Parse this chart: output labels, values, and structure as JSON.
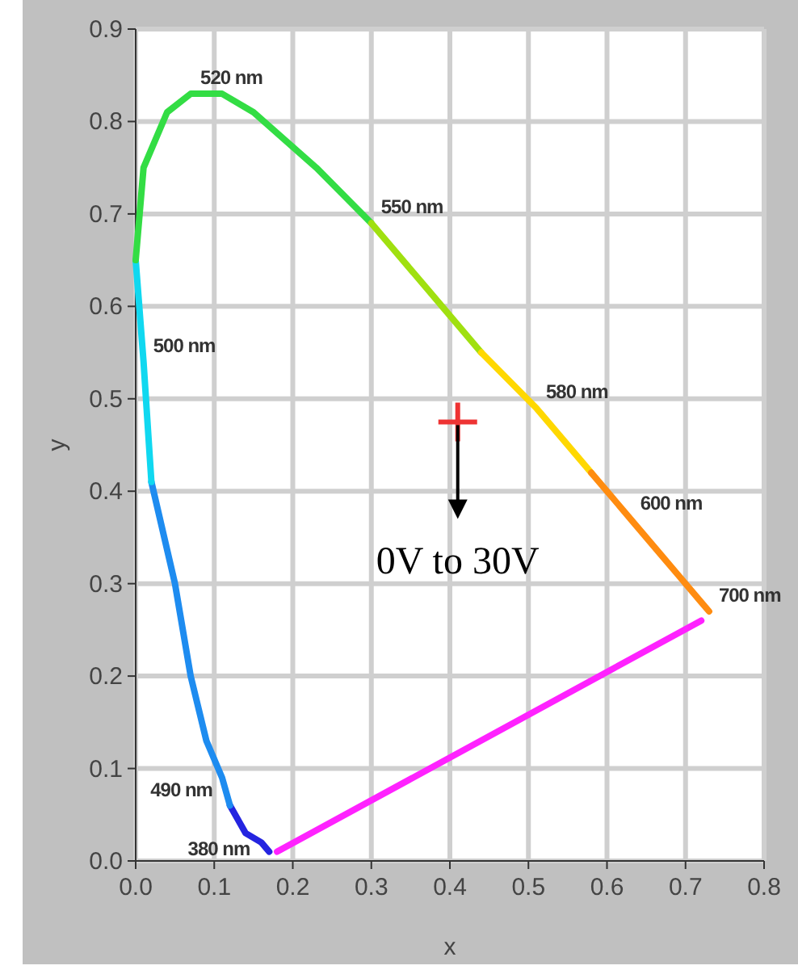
{
  "chart_data": {
    "type": "line",
    "xlabel": "x",
    "ylabel": "y",
    "xlim": [
      0,
      0.8
    ],
    "ylim": [
      0,
      0.9
    ],
    "xticks": [
      {
        "value": 0,
        "label": "0.0"
      },
      {
        "value": 0.1,
        "label": "0.1"
      },
      {
        "value": 0.2,
        "label": "0.2"
      },
      {
        "value": 0.3,
        "label": "0.3"
      },
      {
        "value": 0.4,
        "label": "0.4"
      },
      {
        "value": 0.5,
        "label": "0.5"
      },
      {
        "value": 0.6,
        "label": "0.6"
      },
      {
        "value": 0.7,
        "label": "0.7"
      },
      {
        "value": 0.8,
        "label": "0.8"
      }
    ],
    "yticks": [
      {
        "value": 0,
        "label": "0.0"
      },
      {
        "value": 0.1,
        "label": "0.1"
      },
      {
        "value": 0.2,
        "label": "0.2"
      },
      {
        "value": 0.3,
        "label": "0.3"
      },
      {
        "value": 0.4,
        "label": "0.4"
      },
      {
        "value": 0.5,
        "label": "0.5"
      },
      {
        "value": 0.6,
        "label": "0.6"
      },
      {
        "value": 0.7,
        "label": "0.7"
      },
      {
        "value": 0.8,
        "label": "0.8"
      },
      {
        "value": 0.9,
        "label": "0.9"
      }
    ],
    "grid": true,
    "line_style": "solid",
    "series": [
      {
        "color": "#2424e0",
        "x": [
          0.17,
          0.16,
          0.14,
          0.12
        ],
        "values": [
          0.01,
          0.02,
          0.03,
          0.06
        ]
      },
      {
        "color": "#1e8cf0",
        "x": [
          0.12,
          0.11,
          0.09,
          0.07,
          0.05,
          0.02
        ],
        "values": [
          0.06,
          0.09,
          0.13,
          0.2,
          0.3,
          0.41
        ]
      },
      {
        "color": "#10d8f0",
        "x": [
          0.02,
          0.01,
          0.0
        ],
        "values": [
          0.41,
          0.54,
          0.65
        ]
      },
      {
        "color": "#33dd44",
        "x": [
          0.0,
          0.01,
          0.04,
          0.07,
          0.11,
          0.15,
          0.23,
          0.3
        ],
        "values": [
          0.65,
          0.75,
          0.81,
          0.83,
          0.83,
          0.81,
          0.75,
          0.69
        ]
      },
      {
        "color": "#a0e010",
        "x": [
          0.3,
          0.37,
          0.44
        ],
        "values": [
          0.69,
          0.62,
          0.55
        ]
      },
      {
        "color": "#ffd800",
        "x": [
          0.44,
          0.51,
          0.58
        ],
        "values": [
          0.55,
          0.49,
          0.42
        ]
      },
      {
        "color": "#ff8c10",
        "x": [
          0.58,
          0.63,
          0.67,
          0.69,
          0.72,
          0.73
        ],
        "values": [
          0.42,
          0.37,
          0.33,
          0.31,
          0.28,
          0.27
        ]
      },
      {
        "color": "#ff22ff",
        "x": [
          0.72,
          0.18
        ],
        "values": [
          0.26,
          0.01
        ]
      },
      {
        "type": "scatter",
        "color": "#ee3333",
        "marker": "cross",
        "x": [
          0.41
        ],
        "values": [
          0.475
        ]
      }
    ],
    "annotations": [
      {
        "text": "520 nm",
        "x": 0.07,
        "y": 0.83
      },
      {
        "text": "550 nm",
        "x": 0.3,
        "y": 0.69
      },
      {
        "text": "500 nm",
        "x": 0.01,
        "y": 0.54
      },
      {
        "text": "580 nm",
        "x": 0.51,
        "y": 0.49
      },
      {
        "text": "600 nm",
        "x": 0.63,
        "y": 0.37
      },
      {
        "text": "700 nm",
        "x": 0.73,
        "y": 0.27
      },
      {
        "text": "490 nm",
        "x": 0.11,
        "y": 0.08
      },
      {
        "text": "380 nm",
        "x": 0.17,
        "y": 0.01
      },
      {
        "text": "0V to 30V",
        "x": 0.41,
        "y": 0.475
      }
    ]
  }
}
